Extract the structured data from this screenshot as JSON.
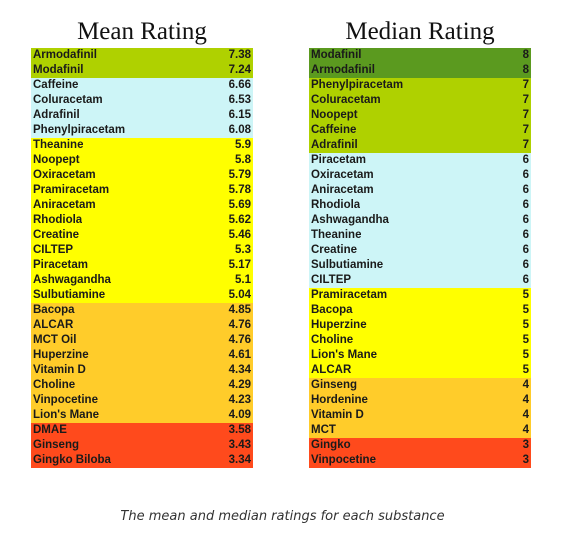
{
  "mean": {
    "title": "Mean Rating",
    "rows": [
      {
        "name": "Armodafinil",
        "value": "7.38",
        "tier": "t1"
      },
      {
        "name": "Modafinil",
        "value": "7.24",
        "tier": "t1"
      },
      {
        "name": "Caffeine",
        "value": "6.66",
        "tier": "t2"
      },
      {
        "name": "Coluracetam",
        "value": "6.53",
        "tier": "t2"
      },
      {
        "name": "Adrafinil",
        "value": "6.15",
        "tier": "t2"
      },
      {
        "name": "Phenylpiracetam",
        "value": "6.08",
        "tier": "t2"
      },
      {
        "name": "Theanine",
        "value": "5.9",
        "tier": "t3"
      },
      {
        "name": "Noopept",
        "value": "5.8",
        "tier": "t3"
      },
      {
        "name": "Oxiracetam",
        "value": "5.79",
        "tier": "t3"
      },
      {
        "name": "Pramiracetam",
        "value": "5.78",
        "tier": "t3"
      },
      {
        "name": "Aniracetam",
        "value": "5.69",
        "tier": "t3"
      },
      {
        "name": "Rhodiola",
        "value": "5.62",
        "tier": "t3"
      },
      {
        "name": "Creatine",
        "value": "5.46",
        "tier": "t3"
      },
      {
        "name": "CILTEP",
        "value": "5.3",
        "tier": "t3"
      },
      {
        "name": "Piracetam",
        "value": "5.17",
        "tier": "t3"
      },
      {
        "name": "Ashwagandha",
        "value": "5.1",
        "tier": "t3"
      },
      {
        "name": "Sulbutiamine",
        "value": "5.04",
        "tier": "t3"
      },
      {
        "name": "Bacopa",
        "value": "4.85",
        "tier": "t4"
      },
      {
        "name": "ALCAR",
        "value": "4.76",
        "tier": "t4"
      },
      {
        "name": "MCT Oil",
        "value": "4.76",
        "tier": "t4"
      },
      {
        "name": "Huperzine",
        "value": "4.61",
        "tier": "t4"
      },
      {
        "name": "Vitamin D",
        "value": "4.34",
        "tier": "t4"
      },
      {
        "name": "Choline",
        "value": "4.29",
        "tier": "t4"
      },
      {
        "name": "Vinpocetine",
        "value": "4.23",
        "tier": "t4"
      },
      {
        "name": "Lion's Mane",
        "value": "4.09",
        "tier": "t4"
      },
      {
        "name": "DMAE",
        "value": "3.58",
        "tier": "t5"
      },
      {
        "name": "Ginseng",
        "value": "3.43",
        "tier": "t5"
      },
      {
        "name": "Gingko Biloba",
        "value": "3.34",
        "tier": "t5"
      }
    ]
  },
  "median": {
    "title": "Median Rating",
    "rows": [
      {
        "name": "Modafinil",
        "value": "8",
        "tier": "t0"
      },
      {
        "name": "Armodafinil",
        "value": "8",
        "tier": "t0"
      },
      {
        "name": "Phenylpiracetam",
        "value": "7",
        "tier": "t1"
      },
      {
        "name": "Coluracetam",
        "value": "7",
        "tier": "t1"
      },
      {
        "name": "Noopept",
        "value": "7",
        "tier": "t1"
      },
      {
        "name": "Caffeine",
        "value": "7",
        "tier": "t1"
      },
      {
        "name": "Adrafinil",
        "value": "7",
        "tier": "t1"
      },
      {
        "name": "Piracetam",
        "value": "6",
        "tier": "t2"
      },
      {
        "name": "Oxiracetam",
        "value": "6",
        "tier": "t2"
      },
      {
        "name": "Aniracetam",
        "value": "6",
        "tier": "t2"
      },
      {
        "name": "Rhodiola",
        "value": "6",
        "tier": "t2"
      },
      {
        "name": "Ashwagandha",
        "value": "6",
        "tier": "t2"
      },
      {
        "name": "Theanine",
        "value": "6",
        "tier": "t2"
      },
      {
        "name": "Creatine",
        "value": "6",
        "tier": "t2"
      },
      {
        "name": "Sulbutiamine",
        "value": "6",
        "tier": "t2"
      },
      {
        "name": "CILTEP",
        "value": "6",
        "tier": "t2"
      },
      {
        "name": "Pramiracetam",
        "value": "5",
        "tier": "t3"
      },
      {
        "name": "Bacopa",
        "value": "5",
        "tier": "t3"
      },
      {
        "name": "Huperzine",
        "value": "5",
        "tier": "t3"
      },
      {
        "name": "Choline",
        "value": "5",
        "tier": "t3"
      },
      {
        "name": "Lion's Mane",
        "value": "5",
        "tier": "t3"
      },
      {
        "name": "ALCAR",
        "value": "5",
        "tier": "t3"
      },
      {
        "name": "Ginseng",
        "value": "4",
        "tier": "t4"
      },
      {
        "name": "Hordenine",
        "value": "4",
        "tier": "t4"
      },
      {
        "name": "Vitamin D",
        "value": "4",
        "tier": "t4"
      },
      {
        "name": "MCT",
        "value": "4",
        "tier": "t4"
      },
      {
        "name": "Gingko",
        "value": "3",
        "tier": "t5"
      },
      {
        "name": "Vinpocetine",
        "value": "3",
        "tier": "t5"
      }
    ]
  },
  "tier_colors": {
    "t0": "#5b9a1f",
    "t1": "#afd100",
    "t2": "#cdf5f7",
    "t3": "#ffff00",
    "t4": "#ffcc2a",
    "t5": "#ff4a1c"
  },
  "caption": "The mean and median ratings for each substance"
}
